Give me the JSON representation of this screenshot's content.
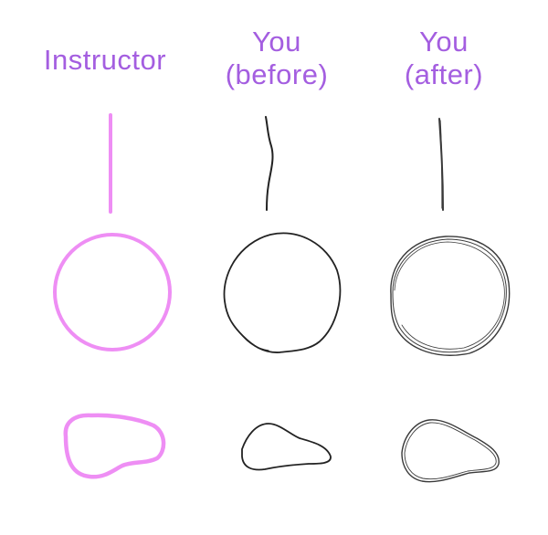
{
  "colors": {
    "heading": "#a45ee0",
    "instructor_stroke": "#ee8ef4",
    "before_stroke": "#222222",
    "after_stroke": "#3a3a3a"
  },
  "columns": [
    {
      "id": "instructor",
      "title_lines": [
        "Instructor"
      ]
    },
    {
      "id": "before",
      "title_lines": [
        "You",
        "(before)"
      ]
    },
    {
      "id": "after",
      "title_lines": [
        "You",
        "(after)"
      ]
    }
  ]
}
